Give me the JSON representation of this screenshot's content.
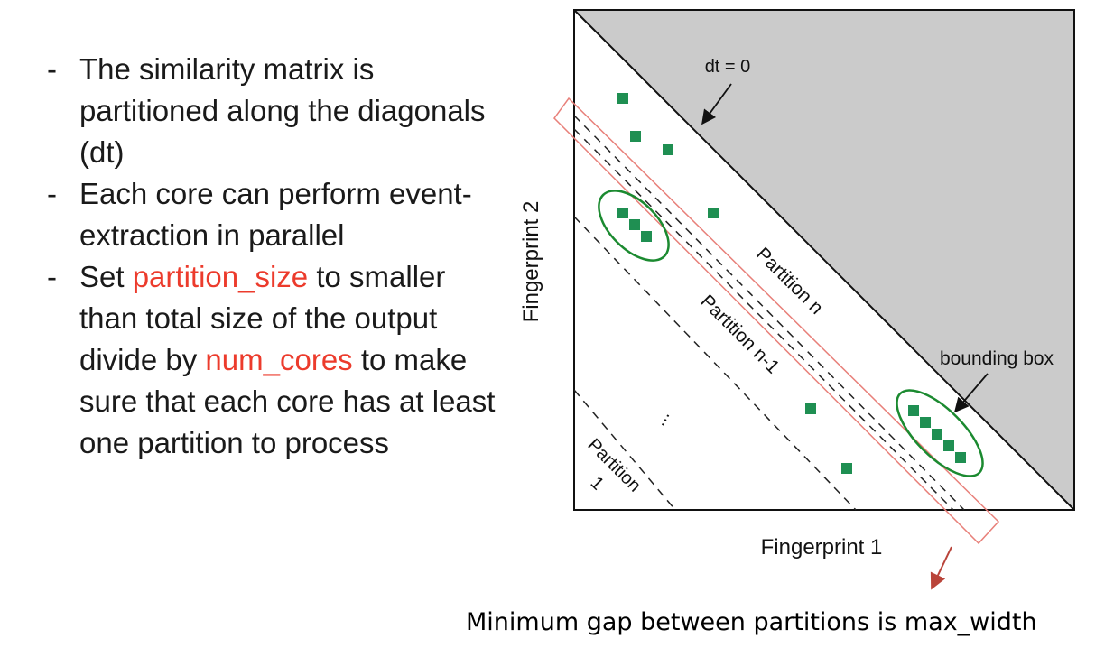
{
  "bullets": [
    {
      "dash": "-",
      "parts": [
        {
          "text": "The similarity matrix is partitioned along the diagonals (dt)",
          "highlight": false
        }
      ]
    },
    {
      "dash": "-",
      "parts": [
        {
          "text": "Each core can perform event-extraction in parallel",
          "highlight": false
        }
      ]
    },
    {
      "dash": "-",
      "parts": [
        {
          "text": "Set ",
          "highlight": false
        },
        {
          "text": "partition_size",
          "highlight": true
        },
        {
          "text": " to smaller than total size of the output divide by ",
          "highlight": false
        },
        {
          "text": "num_cores",
          "highlight": true
        },
        {
          "text": " to make sure that each core has at least one partition to process",
          "highlight": false
        }
      ]
    }
  ],
  "diagram": {
    "dt_label": "dt = 0",
    "xlabel": "Fingerprint 1",
    "ylabel": "Fingerprint 2",
    "partition_n_label": "Partition n",
    "partition_n_minus_1_label": "Partition n-1",
    "partition_1_line1": "Partition",
    "partition_1_line2": "1",
    "ellipsis": "...",
    "bounding_box_label": "bounding box"
  },
  "footer_note": "Minimum gap between partitions is max_width",
  "colors": {
    "highlight": "#ec3b2c",
    "point": "#1f8f52",
    "ellipse": "#1b8a30",
    "partition_box": "#e8807a",
    "note_arrow": "#b9443a",
    "shade": "#cbcbcb"
  }
}
